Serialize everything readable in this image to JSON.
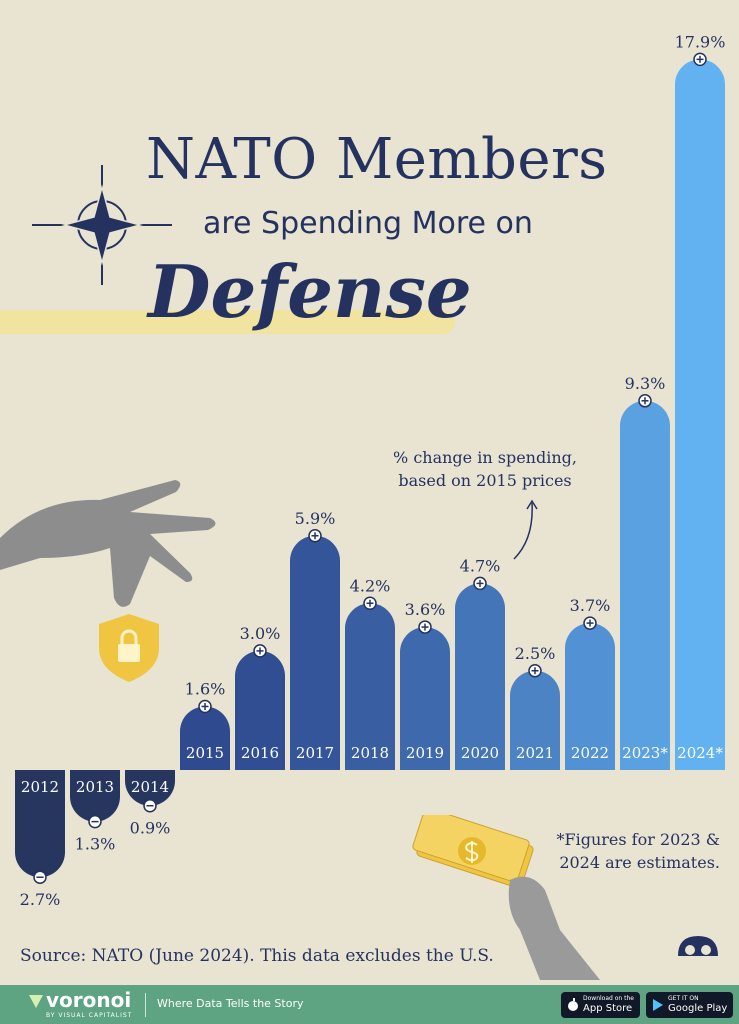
{
  "title": {
    "line1": "NATO Members",
    "line2": "are Spending More on",
    "line3": "Defense"
  },
  "annotation": "% change in spending, based on 2015 prices",
  "footnote": "*Figures for 2023 & 2024 are estimates.",
  "source": "Source: NATO (June 2024). This data excludes the U.S.",
  "footer": {
    "brand": "voronoi",
    "brand_sub": "BY VISUAL CAPITALIST",
    "tagline": "Where Data Tells the Story",
    "app_store_small": "Download on the",
    "app_store": "App Store",
    "google_play_small": "GET IT ON",
    "google_play": "Google Play"
  },
  "colors": {
    "background": "#e9e3d2",
    "negative": "#26365f",
    "positive_start": "#2f4a8f",
    "positive_end": "#62b2f2",
    "text": "#25325f",
    "footer": "#5ea482"
  },
  "chart_data": {
    "type": "bar",
    "categories": [
      "2012",
      "2013",
      "2014",
      "2015",
      "2016",
      "2017",
      "2018",
      "2019",
      "2020",
      "2021",
      "2022",
      "2023*",
      "2024*"
    ],
    "values": [
      -2.7,
      -1.3,
      -0.9,
      1.6,
      3.0,
      5.9,
      4.2,
      3.6,
      4.7,
      2.5,
      3.7,
      9.3,
      17.9
    ],
    "labels": [
      "2.7%",
      "1.3%",
      "0.9%",
      "1.6%",
      "3.0%",
      "5.9%",
      "4.2%",
      "3.6%",
      "4.7%",
      "2.5%",
      "3.7%",
      "9.3%",
      "17.9%"
    ],
    "ylabel": "% change in spending, based on 2015 prices",
    "grid": false
  }
}
